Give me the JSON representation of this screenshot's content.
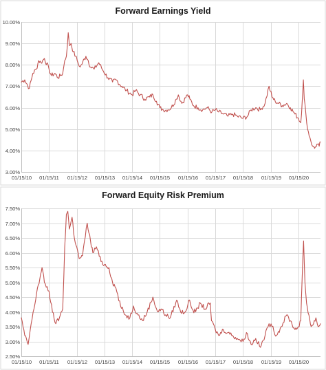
{
  "series_color": "#c0504d",
  "chart_data": [
    {
      "type": "line",
      "title": "Forward Earnings Yield",
      "xlabel": "",
      "ylabel": "",
      "x_ticks": [
        "01/15/10",
        "01/15/11",
        "01/15/12",
        "01/15/13",
        "01/15/14",
        "01/15/15",
        "01/15/16",
        "01/15/17",
        "01/15/18",
        "01/15/19",
        "01/15/20"
      ],
      "y_ticks": [
        "3.00%",
        "4.00%",
        "5.00%",
        "6.00%",
        "7.00%",
        "8.00%",
        "9.00%",
        "10.00%"
      ],
      "xlim": [
        "2010-01-15",
        "2020-11-01"
      ],
      "ylim": [
        3.0,
        10.0
      ],
      "grid": true,
      "legend": "none",
      "series": [
        {
          "values": [
            [
              "2010-01-15",
              7.2
            ],
            [
              "2010-03-01",
              7.3
            ],
            [
              "2010-05-01",
              6.9
            ],
            [
              "2010-06-15",
              7.6
            ],
            [
              "2010-08-01",
              7.8
            ],
            [
              "2010-09-01",
              8.2
            ],
            [
              "2010-10-01",
              8.1
            ],
            [
              "2010-11-15",
              8.3
            ],
            [
              "2011-01-15",
              7.8
            ],
            [
              "2011-02-15",
              7.5
            ],
            [
              "2011-04-01",
              7.6
            ],
            [
              "2011-05-15",
              7.4
            ],
            [
              "2011-06-15",
              7.5
            ],
            [
              "2011-07-15",
              7.6
            ],
            [
              "2011-08-10",
              8.2
            ],
            [
              "2011-09-01",
              8.4
            ],
            [
              "2011-09-25",
              9.5
            ],
            [
              "2011-10-10",
              8.9
            ],
            [
              "2011-11-01",
              9.0
            ],
            [
              "2011-12-01",
              8.6
            ],
            [
              "2012-01-01",
              8.4
            ],
            [
              "2012-02-01",
              8.1
            ],
            [
              "2012-03-01",
              7.9
            ],
            [
              "2012-04-01",
              8.1
            ],
            [
              "2012-05-15",
              8.4
            ],
            [
              "2012-06-15",
              8.2
            ],
            [
              "2012-07-15",
              7.9
            ],
            [
              "2012-09-01",
              7.8
            ],
            [
              "2012-11-01",
              8.1
            ],
            [
              "2013-01-01",
              7.7
            ],
            [
              "2013-03-01",
              7.4
            ],
            [
              "2013-05-01",
              7.2
            ],
            [
              "2013-06-15",
              7.3
            ],
            [
              "2013-09-01",
              7.0
            ],
            [
              "2013-11-01",
              6.8
            ],
            [
              "2014-01-15",
              6.6
            ],
            [
              "2014-03-01",
              6.8
            ],
            [
              "2014-05-01",
              6.6
            ],
            [
              "2014-07-01",
              6.4
            ],
            [
              "2014-09-01",
              6.5
            ],
            [
              "2014-10-15",
              6.6
            ],
            [
              "2014-12-01",
              6.3
            ],
            [
              "2015-01-15",
              6.0
            ],
            [
              "2015-03-01",
              5.9
            ],
            [
              "2015-05-01",
              5.9
            ],
            [
              "2015-06-15",
              6.0
            ],
            [
              "2015-08-20",
              6.4
            ],
            [
              "2015-09-15",
              6.6
            ],
            [
              "2015-11-01",
              6.2
            ],
            [
              "2016-01-15",
              6.6
            ],
            [
              "2016-02-15",
              6.4
            ],
            [
              "2016-04-01",
              6.1
            ],
            [
              "2016-06-01",
              6.0
            ],
            [
              "2016-08-01",
              5.9
            ],
            [
              "2016-10-01",
              6.0
            ],
            [
              "2016-12-01",
              5.8
            ],
            [
              "2017-01-15",
              5.9
            ],
            [
              "2017-03-01",
              5.8
            ],
            [
              "2017-05-01",
              5.7
            ],
            [
              "2017-07-01",
              5.6
            ],
            [
              "2017-09-01",
              5.7
            ],
            [
              "2017-11-01",
              5.6
            ],
            [
              "2018-01-15",
              5.5
            ],
            [
              "2018-03-15",
              5.6
            ],
            [
              "2018-05-01",
              5.9
            ],
            [
              "2018-07-01",
              6.0
            ],
            [
              "2018-09-01",
              5.9
            ],
            [
              "2018-11-01",
              6.2
            ],
            [
              "2018-12-24",
              7.0
            ],
            [
              "2019-02-01",
              6.5
            ],
            [
              "2019-03-15",
              6.3
            ],
            [
              "2019-05-01",
              6.2
            ],
            [
              "2019-06-15",
              6.1
            ],
            [
              "2019-08-15",
              6.2
            ],
            [
              "2019-10-01",
              6.0
            ],
            [
              "2019-12-01",
              5.7
            ],
            [
              "2020-01-15",
              5.5
            ],
            [
              "2020-02-15",
              5.3
            ],
            [
              "2020-03-05",
              6.3
            ],
            [
              "2020-03-20",
              7.3
            ],
            [
              "2020-04-01",
              6.4
            ],
            [
              "2020-04-20",
              5.8
            ],
            [
              "2020-05-15",
              5.0
            ],
            [
              "2020-06-15",
              4.6
            ],
            [
              "2020-07-20",
              4.2
            ],
            [
              "2020-08-15",
              4.1
            ],
            [
              "2020-09-15",
              4.3
            ],
            [
              "2020-10-15",
              4.2
            ],
            [
              "2020-11-01",
              4.4
            ]
          ]
        }
      ]
    },
    {
      "type": "line",
      "title": "Forward Equity Risk Premium",
      "xlabel": "",
      "ylabel": "",
      "x_ticks": [
        "01/15/10",
        "01/15/11",
        "01/15/12",
        "01/15/13",
        "01/15/14",
        "01/15/15",
        "01/15/16",
        "01/15/17",
        "01/15/18",
        "01/15/19",
        "01/15/20"
      ],
      "y_ticks": [
        "2.50%",
        "3.00%",
        "3.50%",
        "4.00%",
        "4.50%",
        "5.00%",
        "5.50%",
        "6.00%",
        "6.50%",
        "7.00%",
        "7.50%"
      ],
      "xlim": [
        "2010-01-15",
        "2020-11-01"
      ],
      "ylim": [
        2.5,
        7.5
      ],
      "grid": true,
      "legend": "none",
      "series": [
        {
          "values": [
            [
              "2010-01-15",
              3.8
            ],
            [
              "2010-03-01",
              3.2
            ],
            [
              "2010-04-15",
              2.9
            ],
            [
              "2010-05-25",
              3.6
            ],
            [
              "2010-07-01",
              4.1
            ],
            [
              "2010-08-15",
              4.8
            ],
            [
              "2010-09-15",
              5.1
            ],
            [
              "2010-10-15",
              5.5
            ],
            [
              "2010-11-15",
              5.0
            ],
            [
              "2011-01-15",
              4.7
            ],
            [
              "2011-03-01",
              4.0
            ],
            [
              "2011-04-15",
              3.6
            ],
            [
              "2011-06-01",
              3.8
            ],
            [
              "2011-07-15",
              4.1
            ],
            [
              "2011-08-10",
              6.2
            ],
            [
              "2011-09-01",
              7.3
            ],
            [
              "2011-09-20",
              7.4
            ],
            [
              "2011-10-10",
              6.8
            ],
            [
              "2011-11-15",
              7.2
            ],
            [
              "2011-12-15",
              6.5
            ],
            [
              "2012-01-15",
              6.2
            ],
            [
              "2012-02-15",
              5.8
            ],
            [
              "2012-04-01",
              5.9
            ],
            [
              "2012-06-01",
              7.0
            ],
            [
              "2012-07-15",
              6.4
            ],
            [
              "2012-08-15",
              6.0
            ],
            [
              "2012-10-01",
              6.2
            ],
            [
              "2012-12-01",
              5.7
            ],
            [
              "2013-01-15",
              5.6
            ],
            [
              "2013-03-15",
              5.5
            ],
            [
              "2013-05-01",
              5.0
            ],
            [
              "2013-06-15",
              4.8
            ],
            [
              "2013-08-15",
              4.2
            ],
            [
              "2013-10-15",
              3.9
            ],
            [
              "2013-12-15",
              3.8
            ],
            [
              "2014-02-01",
              4.2
            ],
            [
              "2014-04-01",
              3.9
            ],
            [
              "2014-06-01",
              3.7
            ],
            [
              "2014-08-01",
              4.0
            ],
            [
              "2014-10-15",
              4.5
            ],
            [
              "2014-12-15",
              4.0
            ],
            [
              "2015-02-01",
              4.1
            ],
            [
              "2015-04-01",
              3.9
            ],
            [
              "2015-06-01",
              3.8
            ],
            [
              "2015-08-25",
              4.4
            ],
            [
              "2015-10-15",
              4.0
            ],
            [
              "2015-12-15",
              4.0
            ],
            [
              "2016-02-11",
              4.4
            ],
            [
              "2016-03-15",
              4.1
            ],
            [
              "2016-05-01",
              4.0
            ],
            [
              "2016-07-01",
              4.3
            ],
            [
              "2016-09-01",
              4.1
            ],
            [
              "2016-11-10",
              4.3
            ],
            [
              "2016-11-25",
              3.7
            ],
            [
              "2017-01-15",
              3.4
            ],
            [
              "2017-03-01",
              3.2
            ],
            [
              "2017-05-01",
              3.4
            ],
            [
              "2017-07-01",
              3.3
            ],
            [
              "2017-09-01",
              3.2
            ],
            [
              "2017-11-01",
              3.1
            ],
            [
              "2018-01-15",
              3.0
            ],
            [
              "2018-03-01",
              3.3
            ],
            [
              "2018-05-01",
              2.9
            ],
            [
              "2018-07-01",
              3.1
            ],
            [
              "2018-09-01",
              2.8
            ],
            [
              "2018-11-01",
              3.2
            ],
            [
              "2018-12-24",
              3.6
            ],
            [
              "2019-02-01",
              3.5
            ],
            [
              "2019-04-01",
              3.2
            ],
            [
              "2019-06-01",
              3.5
            ],
            [
              "2019-08-15",
              3.9
            ],
            [
              "2019-10-01",
              3.7
            ],
            [
              "2019-12-01",
              3.4
            ],
            [
              "2020-01-15",
              3.5
            ],
            [
              "2020-02-15",
              3.7
            ],
            [
              "2020-03-05",
              5.2
            ],
            [
              "2020-03-23",
              6.4
            ],
            [
              "2020-04-10",
              5.0
            ],
            [
              "2020-05-01",
              4.3
            ],
            [
              "2020-06-01",
              3.9
            ],
            [
              "2020-07-01",
              3.5
            ],
            [
              "2020-08-01",
              3.6
            ],
            [
              "2020-09-01",
              3.8
            ],
            [
              "2020-10-01",
              3.5
            ],
            [
              "2020-11-01",
              3.6
            ]
          ]
        }
      ]
    }
  ]
}
